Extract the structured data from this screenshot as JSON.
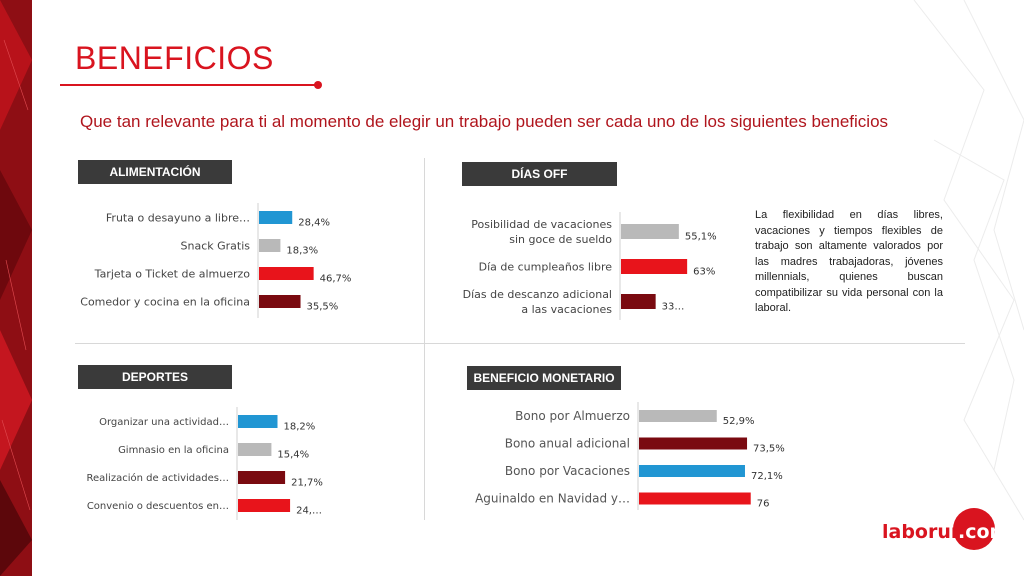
{
  "title": "BENEFICIOS",
  "subtitle": "Que tan relevante para ti al momento de elegir un trabajo pueden ser cada uno de los siguientes beneficios",
  "sections": {
    "alimentacion": "ALIMENTACIÓN",
    "dias_off": "DÍAS OFF",
    "deportes": "DEPORTES",
    "beneficio_monetario": "BENEFICIO MONETARIO"
  },
  "note": "La flexibilidad en días libres, vacaciones y tiempos flexibles de trabajo son altamente valorados por las madres trabajadoras, jóvenes millennials, quienes buscan compatibilizar su vida personal con la laboral.",
  "logo": {
    "text": "laborum",
    "suffix": ".com"
  },
  "colors": {
    "accent": "#d9141f",
    "blue": "#2196d3",
    "gray": "#b9b9b9",
    "red": "#e8141b",
    "darkred": "#7a0a10"
  },
  "chart_data": [
    {
      "id": "alimentacion",
      "type": "bar",
      "orientation": "horizontal",
      "categories": [
        "Fruta o desayuno a libre…",
        "Snack Gratis",
        "Tarjeta o Ticket de almuerzo",
        "Comedor y cocina en la oficina"
      ],
      "values": [
        28.4,
        18.3,
        46.7,
        35.5
      ],
      "labels": [
        "28,4%",
        "18,3%",
        "46,7%",
        "35,5%"
      ],
      "bar_colors": [
        "#2196d3",
        "#b9b9b9",
        "#e8141b",
        "#7a0a10"
      ],
      "xlim": [
        0,
        100
      ]
    },
    {
      "id": "dias_off",
      "type": "bar",
      "orientation": "horizontal",
      "categories": [
        [
          "Posibilidad de vacaciones",
          "sin goce de sueldo"
        ],
        [
          "Día de cumpleaños libre"
        ],
        [
          "Días de descanzo adicional",
          "a las vacaciones"
        ]
      ],
      "values": [
        55.1,
        63,
        33
      ],
      "labels": [
        "55,1%",
        "63%",
        "33…"
      ],
      "bar_colors": [
        "#b9b9b9",
        "#e8141b",
        "#7a0a10"
      ],
      "xlim": [
        0,
        100
      ]
    },
    {
      "id": "deportes",
      "type": "bar",
      "orientation": "horizontal",
      "categories": [
        "Organizar una actividad…",
        "Gimnasio en la oficina",
        "Realización de actividades…",
        "Convenio o descuentos en…"
      ],
      "values": [
        18.2,
        15.4,
        21.7,
        24
      ],
      "labels": [
        "18,2%",
        "15,4%",
        "21,7%",
        "24,…"
      ],
      "bar_colors": [
        "#2196d3",
        "#b9b9b9",
        "#7a0a10",
        "#e8141b"
      ],
      "xlim": [
        0,
        100
      ]
    },
    {
      "id": "beneficio_monetario",
      "type": "bar",
      "orientation": "horizontal",
      "categories": [
        "Bono por Almuerzo",
        "Bono anual adicional",
        "Bono por Vacaciones",
        "Aguinaldo en Navidad y…"
      ],
      "values": [
        52.9,
        73.5,
        72.1,
        76
      ],
      "labels": [
        "52,9%",
        "73,5%",
        "72,1%",
        "76"
      ],
      "bar_colors": [
        "#b9b9b9",
        "#7a0a10",
        "#2196d3",
        "#e8141b"
      ],
      "xlim": [
        0,
        100
      ]
    }
  ]
}
